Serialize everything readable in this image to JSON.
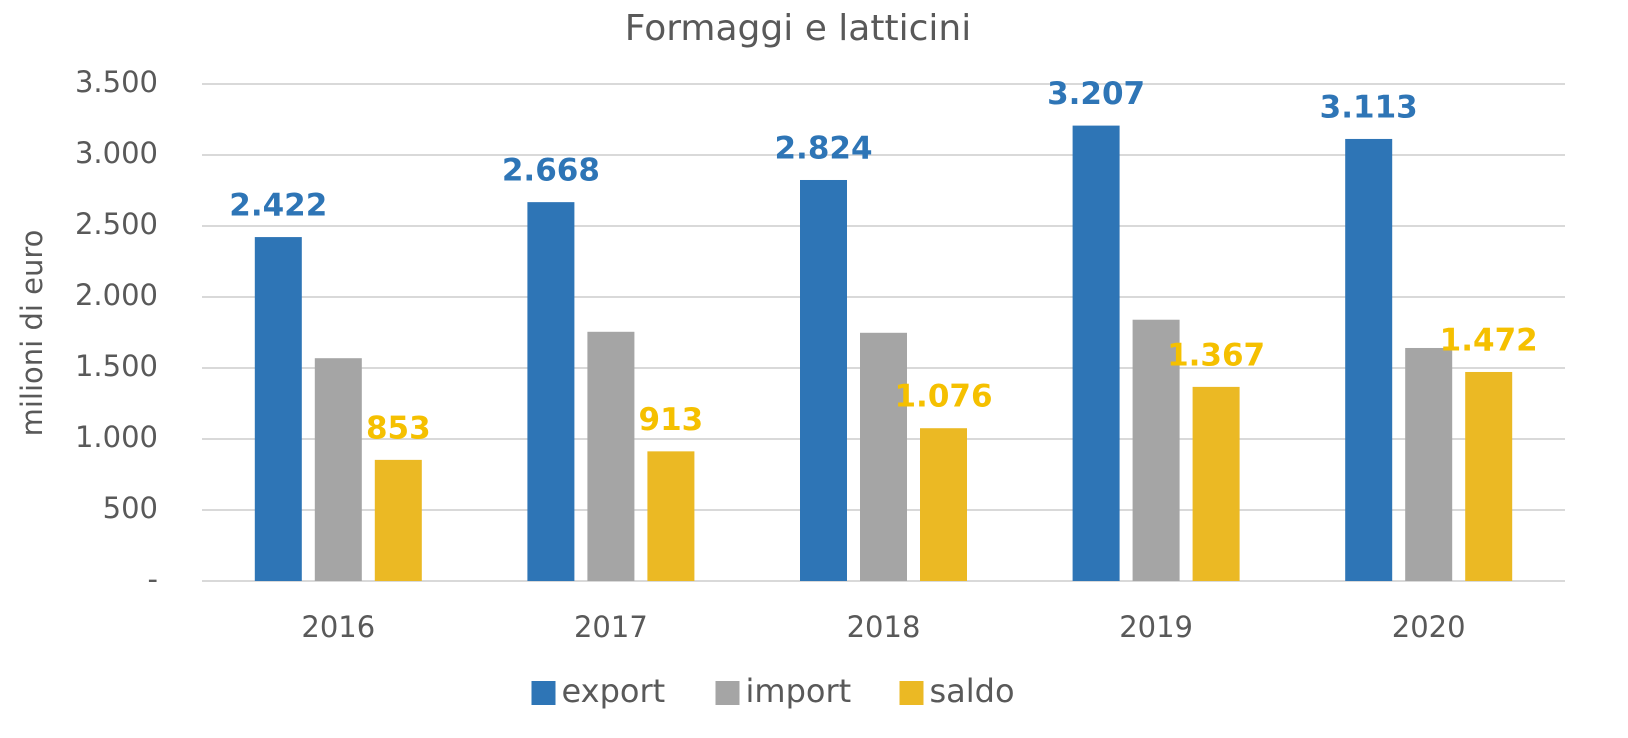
{
  "chart_data": {
    "type": "bar",
    "title": "Formaggi e latticini",
    "y_label": "milioni di euro",
    "categories": [
      "2016",
      "2017",
      "2018",
      "2019",
      "2020"
    ],
    "series": [
      {
        "name": "export",
        "color": "#2e75b6",
        "values": [
          2422,
          2668,
          2824,
          3207,
          3113
        ],
        "value_labels": [
          "2.422",
          "2.668",
          "2.824",
          "3.207",
          "3.113"
        ]
      },
      {
        "name": "import",
        "color": "#a5a5a5",
        "values": [
          1569,
          1755,
          1748,
          1840,
          1641
        ]
      },
      {
        "name": "saldo",
        "color": "#ebb924",
        "values": [
          853,
          913,
          1076,
          1367,
          1472
        ],
        "value_labels": [
          "853",
          "913",
          "1.076",
          "1.367",
          "1.472"
        ]
      }
    ],
    "ylim": [
      0,
      3500
    ],
    "yticks": [
      {
        "value": 0,
        "label": "-"
      },
      500,
      {
        "value": 1000,
        "label": "1.000"
      },
      {
        "value": 1500,
        "label": "1.500"
      },
      {
        "value": 2000,
        "label": "2.000"
      },
      {
        "value": 2500,
        "label": "2.500"
      },
      {
        "value": 3000,
        "label": "3.000"
      },
      {
        "value": 3500,
        "label": "3.500"
      }
    ],
    "grid": true,
    "legend": "bottom"
  }
}
